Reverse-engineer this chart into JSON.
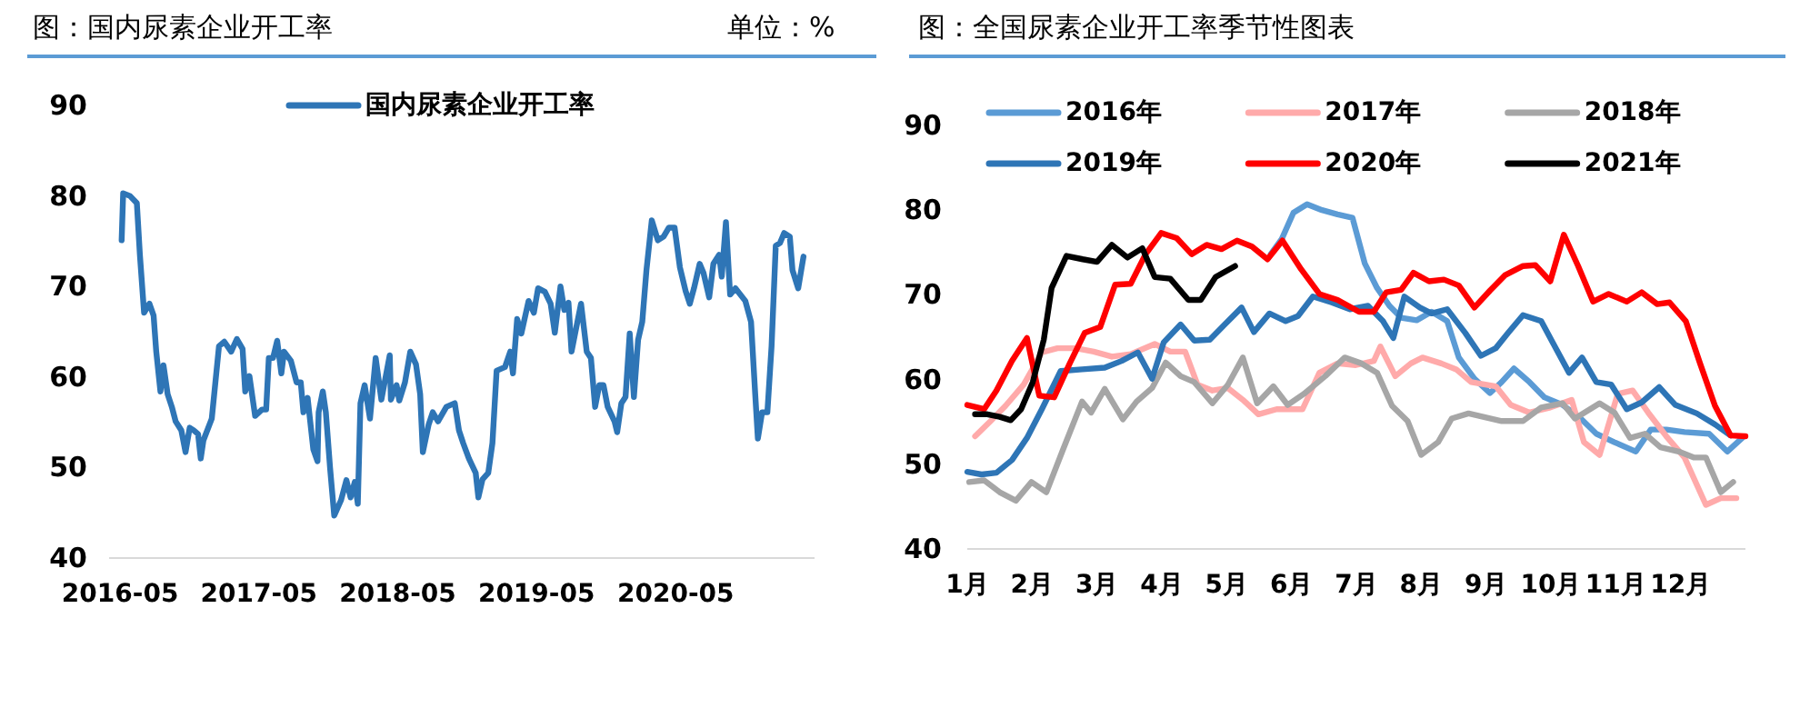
{
  "chart_data": [
    {
      "type": "line",
      "title": "图：国内尿素企业开工率",
      "subtitle": "单位：%",
      "xlim": [
        "2016-04-02",
        "2021-05-01"
      ],
      "xticks": [
        "2016-05",
        "2017-05",
        "2018-05",
        "2019-05",
        "2020-05"
      ],
      "ylim": [
        40,
        90
      ],
      "yticks": [
        40,
        50,
        60,
        70,
        80,
        90
      ],
      "grid": false,
      "legend": "top",
      "line_style": "solid",
      "series": [
        {
          "name": "国内尿素企业开工率",
          "color": "#2e75b6",
          "x": [
            "2016-05-05",
            "2016-05-09",
            "2016-05-27",
            "2016-06-14",
            "2016-06-22",
            "2016-07-03",
            "2016-07-17",
            "2016-07-28",
            "2016-08-04",
            "2016-08-15",
            "2016-08-23",
            "2016-09-03",
            "2016-09-14",
            "2016-09-24",
            "2016-10-09",
            "2016-10-20",
            "2016-10-31",
            "2016-11-11",
            "2016-11-22",
            "2016-11-29",
            "2016-12-06",
            "2016-12-28",
            "2017-01-16",
            "2017-01-30",
            "2017-02-17",
            "2017-03-04",
            "2017-03-19",
            "2017-03-26",
            "2017-04-06",
            "2017-04-21",
            "2017-05-09",
            "2017-05-20",
            "2017-05-27",
            "2017-06-07",
            "2017-06-18",
            "2017-06-29",
            "2017-07-06",
            "2017-07-24",
            "2017-08-08",
            "2017-08-19",
            "2017-08-26",
            "2017-09-06",
            "2017-09-21",
            "2017-10-02",
            "2017-10-05",
            "2017-10-16",
            "2017-10-24",
            "2017-11-04",
            "2017-11-15",
            "2017-12-03",
            "2017-12-17",
            "2017-12-28",
            "2018-01-08",
            "2018-01-16",
            "2018-01-23",
            "2018-02-03",
            "2018-02-17",
            "2018-03-04",
            "2018-03-19",
            "2018-04-10",
            "2018-04-13",
            "2018-04-28",
            "2018-05-05",
            "2018-05-20",
            "2018-06-03",
            "2018-06-18",
            "2018-06-29",
            "2018-07-06",
            "2018-07-21",
            "2018-08-01",
            "2018-08-15",
            "2018-09-06",
            "2018-09-28",
            "2018-10-09",
            "2018-10-20",
            "2018-11-04",
            "2018-11-22",
            "2018-11-29",
            "2018-12-10",
            "2018-12-25",
            "2019-01-05",
            "2019-01-16",
            "2019-02-07",
            "2019-02-21",
            "2019-02-28",
            "2019-03-11",
            "2019-03-22",
            "2019-04-10",
            "2019-04-24",
            "2019-05-05",
            "2019-05-23",
            "2019-06-07",
            "2019-06-18",
            "2019-07-03",
            "2019-07-13",
            "2019-07-24",
            "2019-08-01",
            "2019-08-15",
            "2019-08-26",
            "2019-09-10",
            "2019-09-21",
            "2019-10-02",
            "2019-10-13",
            "2019-10-24",
            "2019-11-04",
            "2019-11-22",
            "2019-11-29",
            "2019-12-10",
            "2019-12-21",
            "2020-01-01",
            "2020-01-12",
            "2020-01-23",
            "2020-02-03",
            "2020-02-14",
            "2020-02-28",
            "2020-03-15",
            "2020-03-30",
            "2020-04-13",
            "2020-04-28",
            "2020-05-12",
            "2020-05-27",
            "2020-06-07",
            "2020-06-18",
            "2020-07-03",
            "2020-07-13",
            "2020-07-28",
            "2020-08-08",
            "2020-08-23",
            "2020-08-30",
            "2020-09-10",
            "2020-09-21",
            "2020-10-05",
            "2020-10-31",
            "2020-11-15",
            "2020-11-26",
            "2020-12-03",
            "2020-12-14",
            "2020-12-28",
            "2021-01-08",
            "2021-01-19",
            "2021-01-30",
            "2021-02-10",
            "2021-02-25",
            "2021-03-04",
            "2021-03-19",
            "2021-04-02"
          ],
          "values": [
            75.1,
            80.3,
            80,
            79.2,
            73.5,
            67.1,
            68.1,
            66.8,
            62.8,
            58.4,
            61.3,
            58.1,
            56.7,
            55.1,
            54.1,
            51.7,
            54.4,
            54.1,
            53.7,
            51,
            53,
            55.4,
            63.4,
            63.9,
            62.8,
            64.2,
            63.1,
            58.4,
            60.1,
            55.7,
            56.4,
            56.4,
            62.1,
            62.1,
            64,
            60.4,
            62.8,
            61.8,
            59.4,
            59.4,
            56.1,
            57.7,
            52,
            50.7,
            56.1,
            58.4,
            56.1,
            50,
            44.7,
            46.4,
            48.6,
            46.7,
            48.4,
            46,
            57.1,
            59.1,
            55.4,
            62.1,
            57.5,
            62.4,
            57.5,
            59.1,
            57.4,
            59.4,
            62.8,
            61.4,
            58.1,
            51.7,
            54.7,
            56.1,
            55.1,
            56.7,
            57.1,
            54.1,
            52.7,
            51,
            49.4,
            46.7,
            48.7,
            49.4,
            52.7,
            60.7,
            61.1,
            62.8,
            60.4,
            66.4,
            64.8,
            68.4,
            67.1,
            69.8,
            69.4,
            68.1,
            64.9,
            70,
            67.4,
            68.2,
            62.8,
            65.8,
            68.1,
            62.8,
            62.1,
            56.7,
            59.1,
            59.1,
            56.7,
            55.1,
            53.9,
            57.1,
            57.8,
            64.8,
            57.8,
            64.1,
            66.1,
            71.8,
            77.3,
            75.1,
            75.5,
            76.5,
            76.5,
            72.1,
            69.5,
            68.1,
            69.8,
            72.5,
            71.5,
            68.8,
            72.5,
            73.5,
            71.1,
            77.1,
            69.1,
            69.8,
            68.4,
            66.1,
            58.1,
            53.2,
            56.1,
            56.1,
            63.4,
            74.5,
            74.8,
            75.9,
            75.5,
            71.8,
            69.8,
            73.3
          ]
        }
      ]
    },
    {
      "type": "line",
      "title": "图：全国尿素企业开工率季节性图表",
      "xlim": [
        1,
        13
      ],
      "xticks": [
        {
          "value": 1,
          "label": "1月"
        },
        {
          "value": 2,
          "label": "2月"
        },
        {
          "value": 3,
          "label": "3月"
        },
        {
          "value": 4,
          "label": "4月"
        },
        {
          "value": 5,
          "label": "5月"
        },
        {
          "value": 6,
          "label": "6月"
        },
        {
          "value": 7,
          "label": "7月"
        },
        {
          "value": 8,
          "label": "8月"
        },
        {
          "value": 9,
          "label": "9月"
        },
        {
          "value": 10,
          "label": "10月"
        },
        {
          "value": 11,
          "label": "11月"
        },
        {
          "value": 12,
          "label": "12月"
        }
      ],
      "ylim": [
        40,
        90
      ],
      "yticks": [
        40,
        50,
        60,
        70,
        80,
        90
      ],
      "grid": false,
      "legend": "top",
      "line_style": "solid",
      "series": [
        {
          "name": "2016年",
          "color": "#5b9bd5",
          "x": [
            5.68,
            5.85,
            6.03,
            6.24,
            6.47,
            6.71,
            6.94,
            7.13,
            7.32,
            7.51,
            7.69,
            7.93,
            8.16,
            8.4,
            8.58,
            8.82,
            9.06,
            9.24,
            9.43,
            9.67,
            9.9,
            10.18,
            10.46,
            10.7,
            10.98,
            11.31,
            11.54,
            11.78,
            12.06,
            12.44,
            12.72,
            12.95
          ],
          "values": [
            74.8,
            76.6,
            79.7,
            80.7,
            80.0,
            79.5,
            79.1,
            73.7,
            70.8,
            68.7,
            67.3,
            67.0,
            68.0,
            66.9,
            62.6,
            60.1,
            58.4,
            59.7,
            61.3,
            59.7,
            57.9,
            57.0,
            55.4,
            53.6,
            52.6,
            51.5,
            54.1,
            54.1,
            53.8,
            53.6,
            51.5,
            53.1
          ]
        },
        {
          "name": "2017年",
          "color": "#ffaaaa",
          "x": [
            1.12,
            1.36,
            1.59,
            1.87,
            2.15,
            2.39,
            2.67,
            2.95,
            3.23,
            3.52,
            3.89,
            4.13,
            4.36,
            4.55,
            4.78,
            5.02,
            5.25,
            5.49,
            5.77,
            6.17,
            6.43,
            6.71,
            6.99,
            7.27,
            7.37,
            7.6,
            7.84,
            8.02,
            8.31,
            8.54,
            8.77,
            9.15,
            9.38,
            9.67,
            9.99,
            10.32,
            10.51,
            10.75,
            11.03,
            11.26,
            11.5,
            11.78,
            12.06,
            12.39,
            12.62,
            12.86
          ],
          "values": [
            53.3,
            55.1,
            56.9,
            59.4,
            63.2,
            63.7,
            63.7,
            63.3,
            62.7,
            63.0,
            64.2,
            63.3,
            63.3,
            59.4,
            58.7,
            59.0,
            57.6,
            55.9,
            56.5,
            56.5,
            60.8,
            61.9,
            61.7,
            62.2,
            63.9,
            60.4,
            61.9,
            62.6,
            61.9,
            61.2,
            59.7,
            59.2,
            57.0,
            56.1,
            56.7,
            57.6,
            52.6,
            51.1,
            58.3,
            58.7,
            56.1,
            53.3,
            50.8,
            45.2,
            46.0,
            46.0
          ]
        },
        {
          "name": "2018年",
          "color": "#a6a6a6",
          "x": [
            1.03,
            1.26,
            1.5,
            1.75,
            1.99,
            2.22,
            2.48,
            2.77,
            2.91,
            3.12,
            3.4,
            3.61,
            3.85,
            4.06,
            4.29,
            4.5,
            4.78,
            5.02,
            5.25,
            5.47,
            5.72,
            5.94,
            6.19,
            6.52,
            6.82,
            7.08,
            7.32,
            7.55,
            7.79,
            8.0,
            8.26,
            8.47,
            8.73,
            9.06,
            9.24,
            9.57,
            9.85,
            10.18,
            10.37,
            10.75,
            10.98,
            11.22,
            11.45,
            11.69,
            11.97,
            12.2,
            12.39,
            12.62,
            12.81
          ],
          "values": [
            47.9,
            48.1,
            46.7,
            45.7,
            47.9,
            46.7,
            51.8,
            57.4,
            56.1,
            58.9,
            55.3,
            57.4,
            59.0,
            62.0,
            60.4,
            59.7,
            57.2,
            59.4,
            62.6,
            57.2,
            59.2,
            57.0,
            58.3,
            60.4,
            62.6,
            61.9,
            60.8,
            56.9,
            55.1,
            51.1,
            52.6,
            55.4,
            56.0,
            55.4,
            55.1,
            55.1,
            56.7,
            57.2,
            55.4,
            57.2,
            56.1,
            53.1,
            53.6,
            52.0,
            51.5,
            50.8,
            50.8,
            46.7,
            47.9
          ]
        },
        {
          "name": "2019年",
          "color": "#2e75b6",
          "x": [
            1.0,
            1.22,
            1.45,
            1.69,
            1.92,
            2.15,
            2.44,
            2.77,
            3.12,
            3.38,
            3.63,
            3.85,
            4.03,
            4.29,
            4.5,
            4.74,
            4.97,
            5.23,
            5.42,
            5.66,
            5.91,
            6.1,
            6.33,
            6.62,
            6.9,
            7.18,
            7.41,
            7.57,
            7.74,
            7.98,
            8.16,
            8.4,
            8.68,
            8.92,
            9.15,
            9.34,
            9.57,
            9.85,
            10.04,
            10.28,
            10.48,
            10.7,
            10.93,
            11.17,
            11.4,
            11.67,
            11.92,
            12.25,
            12.53,
            12.77
          ],
          "values": [
            49.1,
            48.8,
            49.0,
            50.5,
            53.1,
            56.5,
            61.0,
            61.2,
            61.4,
            62.2,
            63.2,
            60.1,
            64.4,
            66.5,
            64.6,
            64.7,
            66.5,
            68.5,
            65.6,
            67.8,
            66.9,
            67.5,
            69.8,
            69.1,
            68.3,
            68.7,
            66.9,
            64.9,
            69.8,
            68.5,
            67.8,
            68.3,
            65.5,
            62.8,
            63.7,
            65.5,
            67.6,
            66.9,
            64.2,
            60.8,
            62.6,
            59.7,
            59.4,
            56.5,
            57.3,
            59.1,
            57.0,
            56.0,
            54.7,
            53.4
          ]
        },
        {
          "name": "2020年",
          "color": "#ff0000",
          "x": [
            1.0,
            1.26,
            1.45,
            1.69,
            1.92,
            2.11,
            2.34,
            2.58,
            2.81,
            3.05,
            3.28,
            3.52,
            3.75,
            3.99,
            4.23,
            4.46,
            4.69,
            4.92,
            5.16,
            5.39,
            5.63,
            5.86,
            6.15,
            6.43,
            6.71,
            7.04,
            7.27,
            7.46,
            7.69,
            7.88,
            8.12,
            8.35,
            8.58,
            8.82,
            9.06,
            9.29,
            9.57,
            9.76,
            9.99,
            10.2,
            10.42,
            10.65,
            10.89,
            11.17,
            11.4,
            11.64,
            11.83,
            12.08,
            12.3,
            12.53,
            12.77,
            13.0
          ],
          "values": [
            57.0,
            56.5,
            58.7,
            62.2,
            64.9,
            58.1,
            57.9,
            61.9,
            65.5,
            66.2,
            71.2,
            71.3,
            74.8,
            77.3,
            76.7,
            74.8,
            75.9,
            75.4,
            76.4,
            75.7,
            74.2,
            76.4,
            73.0,
            70.1,
            69.4,
            68.0,
            68.0,
            70.3,
            70.6,
            72.6,
            71.6,
            71.8,
            71.1,
            68.5,
            70.5,
            72.3,
            73.4,
            73.5,
            71.6,
            77.1,
            73.4,
            69.2,
            70.1,
            69.2,
            70.3,
            68.9,
            69.1,
            66.9,
            61.9,
            56.9,
            53.4,
            53.3
          ]
        },
        {
          "name": "2021年",
          "color": "#000000",
          "x": [
            1.12,
            1.31,
            1.5,
            1.67,
            1.83,
            2.01,
            2.18,
            2.3,
            2.53,
            2.78,
            3.0,
            3.23,
            3.47,
            3.7,
            3.89,
            4.13,
            4.41,
            4.6,
            4.83,
            5.13
          ],
          "values": [
            55.9,
            55.9,
            55.6,
            55.2,
            56.5,
            59.7,
            64.7,
            70.8,
            74.6,
            74.2,
            73.9,
            75.9,
            74.4,
            75.5,
            72.1,
            71.9,
            69.4,
            69.4,
            72.1,
            73.4
          ]
        }
      ]
    }
  ]
}
